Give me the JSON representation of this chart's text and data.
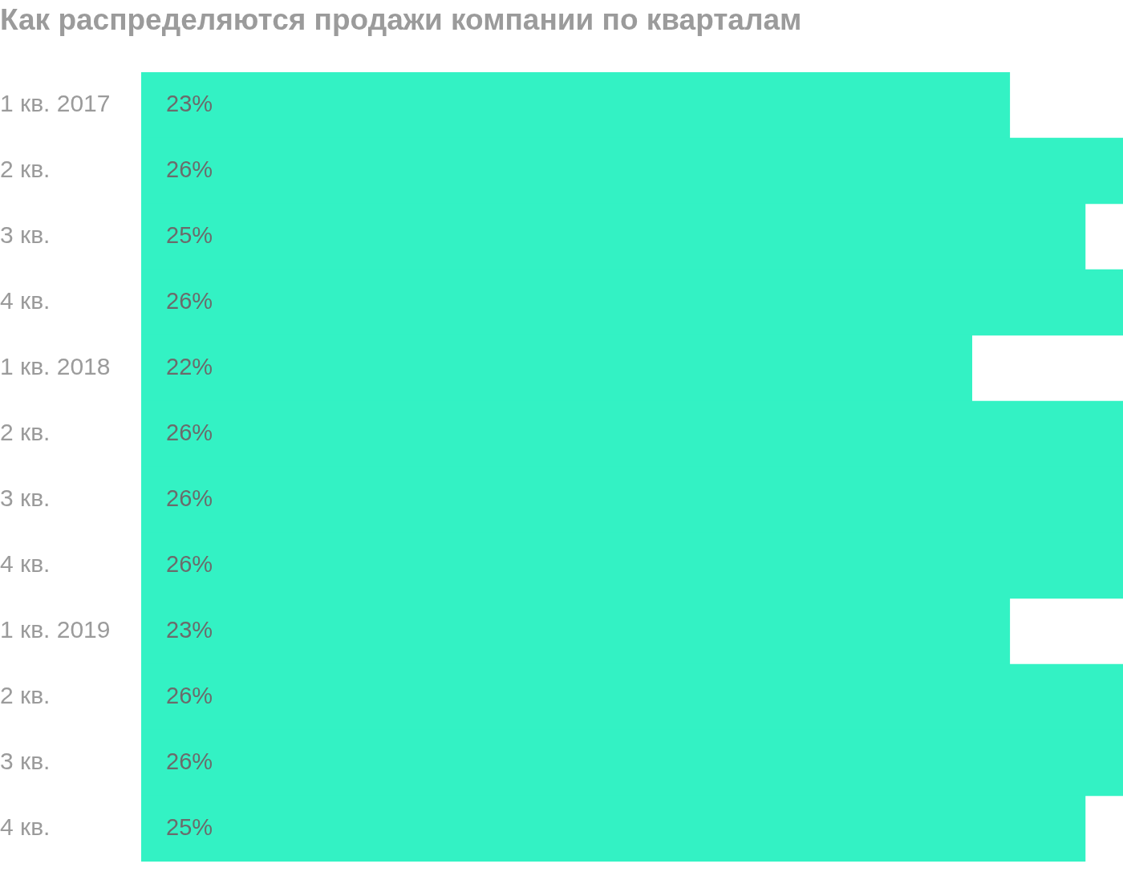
{
  "chart_data": {
    "type": "bar",
    "orientation": "horizontal",
    "title": "Как распределяются продажи компании по кварталам",
    "categories": [
      "1 кв. 2017",
      "2 кв.",
      "3 кв.",
      "4 кв.",
      "1 кв. 2018",
      "2 кв.",
      "3 кв.",
      "4 кв.",
      "1 кв. 2019",
      "2 кв.",
      "3 кв.",
      "4 кв."
    ],
    "values": [
      23,
      26,
      25,
      26,
      22,
      26,
      26,
      26,
      23,
      26,
      26,
      25
    ],
    "value_labels": [
      "23%",
      "26%",
      "25%",
      "26%",
      "22%",
      "26%",
      "26%",
      "26%",
      "23%",
      "26%",
      "26%",
      "25%"
    ],
    "color": "#33f2c4",
    "xlim": [
      0,
      26
    ],
    "tick_labels": "y",
    "legend": false
  }
}
